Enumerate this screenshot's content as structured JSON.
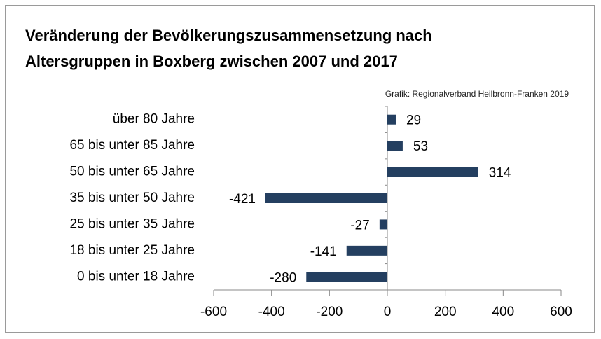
{
  "chart_data": {
    "type": "hbar",
    "title": "Veränderung der Bevölkerungszusammensetzung nach Altersgruppen in Boxberg zwischen 2007 und 2017",
    "source": "Grafik: Regionalverband Heilbronn-Franken 2019",
    "categories": [
      "über 80 Jahre",
      "65 bis unter 85 Jahre",
      "50 bis unter 65 Jahre",
      "35 bis unter 50 Jahre",
      "25 bis unter 35 Jahre",
      "18 bis unter 25 Jahre",
      "0 bis unter 18 Jahre"
    ],
    "values": [
      29,
      53,
      314,
      -421,
      -27,
      -141,
      -280
    ],
    "color": "#243f60",
    "xlim": [
      -600,
      600
    ],
    "xticks": [
      -600,
      -400,
      -200,
      0,
      200,
      400,
      600
    ],
    "grid": false
  }
}
